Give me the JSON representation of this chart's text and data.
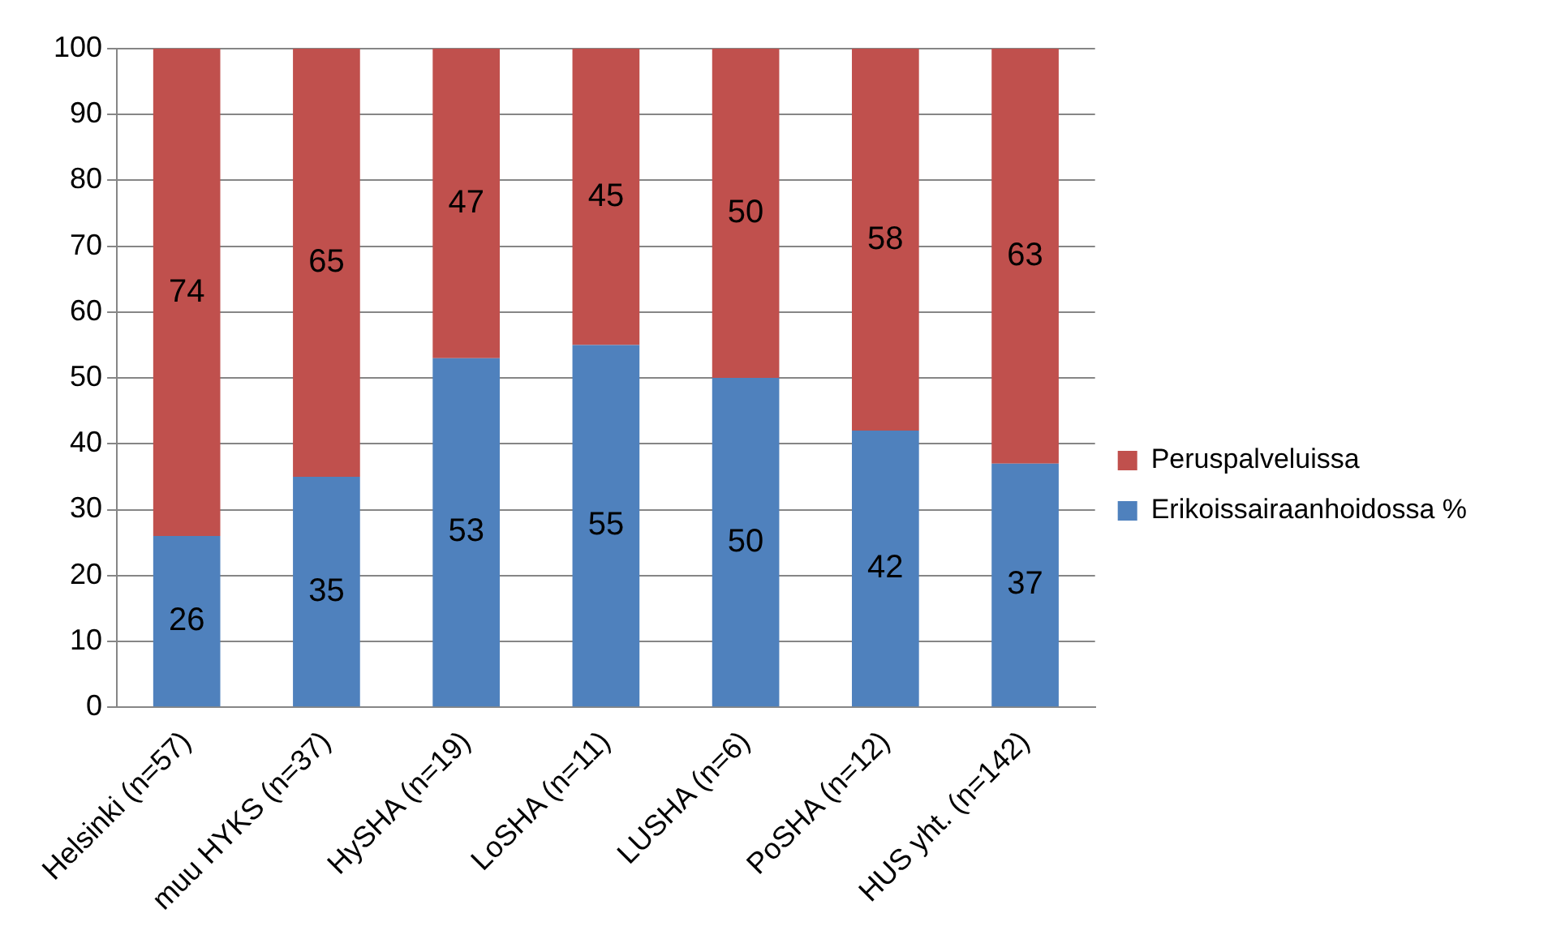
{
  "chart_data": {
    "type": "bar",
    "stacked": true,
    "categories": [
      "Helsinki (n=57)",
      "muu HYKS (n=37)",
      "HySHA (n=19)",
      "LoSHA (n=11)",
      "LUSHA (n=6)",
      "PoSHA (n=12)",
      "HUS yht. (n=142)"
    ],
    "series": [
      {
        "name": "Erikoissairaanhoidossa %",
        "color": "#4f81bd",
        "values": [
          26,
          35,
          53,
          55,
          50,
          42,
          37
        ]
      },
      {
        "name": "Peruspalveluissa",
        "color": "#c0504d",
        "values": [
          74,
          65,
          47,
          45,
          50,
          58,
          63
        ]
      }
    ],
    "ylim": [
      0,
      100
    ],
    "yticks": [
      0,
      10,
      20,
      30,
      40,
      50,
      60,
      70,
      80,
      90,
      100
    ],
    "grid": "y",
    "legend": "right",
    "data_labels": true
  }
}
